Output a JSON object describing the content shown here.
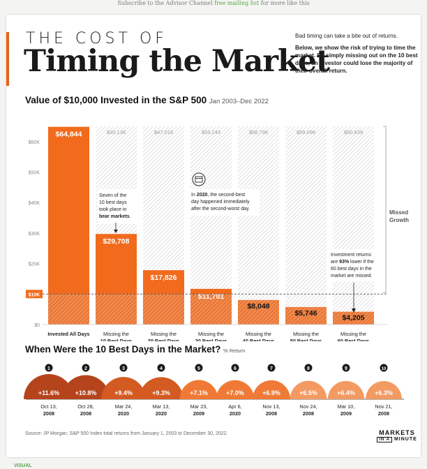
{
  "header": {
    "top_pre": "Subscribe to the Advisor Channel",
    "top_link": "free mailing list",
    "top_post": "for more like this",
    "title_small": "THE COST OF",
    "title_big": "Timing the Market",
    "intro_1": "Bad timing can take a bite out of returns.",
    "intro_2": "Below, we show the risk of trying to time the market. By simply missing out on the 10 best days, an investor could lose the majority of their overall return."
  },
  "colors": {
    "orange": "#f26b1d",
    "hatch": "#d9d9d9",
    "hatch_bar": "#e1632b",
    "dark_circle": "#b5441d"
  },
  "chart_data": [
    {
      "type": "bar",
      "title": "Value of $10,000 Invested in the S&P 500",
      "subtitle": "Jan 2003–Dec 2022",
      "categories": [
        "Invested All Days",
        "Missing the 10 Best Days",
        "Missing the 20 Best Days",
        "Missing the 30 Best Days",
        "Missing the 40 Best Days",
        "Missing the 50 Best Days",
        "Missing the 60 Best Days"
      ],
      "category_lines": [
        [
          "Invested All Days",
          ""
        ],
        [
          "Missing the",
          "10 Best Days"
        ],
        [
          "Missing the",
          "20 Best Days"
        ],
        [
          "Missing the",
          "30 Best Days"
        ],
        [
          "Missing the",
          "40 Best Days"
        ],
        [
          "Missing the",
          "50 Best Days"
        ],
        [
          "Missing the",
          "60 Best Days"
        ]
      ],
      "values": [
        64844,
        29708,
        17826,
        11701,
        8048,
        5746,
        4205
      ],
      "value_labels": [
        "$64,844",
        "$29,708",
        "$17,826",
        "$11,701",
        "$8,048",
        "$5,746",
        "$4,205"
      ],
      "missed_values": [
        null,
        35136,
        47018,
        53143,
        56796,
        59098,
        60639
      ],
      "missed_labels": [
        "",
        "$35,136",
        "$47,018",
        "$53,143",
        "$56,796",
        "$59,098",
        "$60,639"
      ],
      "ylim": [
        0,
        65000
      ],
      "yticks": [
        0,
        10000,
        20000,
        30000,
        40000,
        50000,
        60000
      ],
      "ytick_labels": [
        "$0",
        "$10K",
        "$20K",
        "$30K",
        "$40K",
        "$50K",
        "$60K"
      ],
      "baseline": 10000,
      "baseline_label": "$10K",
      "missed_label": [
        "Missed",
        "Growth"
      ],
      "annotations": [
        {
          "lines": [
            "Seven of the",
            "10 best days",
            "took place in",
            "bear markets."
          ]
        },
        {
          "lines": [
            "In 2020, the second-best",
            "day happened immediately",
            "after the second-worst day."
          ]
        },
        {
          "lines": [
            "Investment returns",
            "are 93% lower if the",
            "60 best days in the",
            "market are missed."
          ]
        }
      ]
    },
    {
      "type": "bar",
      "title": "When Were the 10 Best Days in the Market?",
      "subtitle": "% Return",
      "categories": [
        "1",
        "2",
        "3",
        "4",
        "5",
        "6",
        "7",
        "8",
        "9",
        "10"
      ],
      "values": [
        11.6,
        10.8,
        9.4,
        9.3,
        7.1,
        7.0,
        6.9,
        6.5,
        6.4,
        6.3
      ],
      "value_labels": [
        "+11.6%",
        "+10.8%",
        "+9.4%",
        "+9.3%",
        "+7.1%",
        "+7.0%",
        "+6.9%",
        "+6.5%",
        "+6.4%",
        "+6.3%"
      ],
      "dates": [
        [
          "Oct 13,",
          "2008"
        ],
        [
          "Oct 28,",
          "2008"
        ],
        [
          "Mar 24,",
          "2020"
        ],
        [
          "Mar 13,",
          "2020"
        ],
        [
          "Mar 23,",
          "2009"
        ],
        [
          "Apr 6,",
          "2020"
        ],
        [
          "Nov 13,",
          "2008"
        ],
        [
          "Nov 24,",
          "2008"
        ],
        [
          "Mar 10,",
          "2009"
        ],
        [
          "Nov 21,",
          "2008"
        ]
      ]
    }
  ],
  "footer": {
    "source": "Source: JP Morgan. S&P 500 Index total returns from January 1, 2003 to December 30, 2022.",
    "logo_top": "MARKETS",
    "logo_mid": "IN A",
    "logo_bottom": "MINUTE",
    "brand": "VISUAL"
  }
}
